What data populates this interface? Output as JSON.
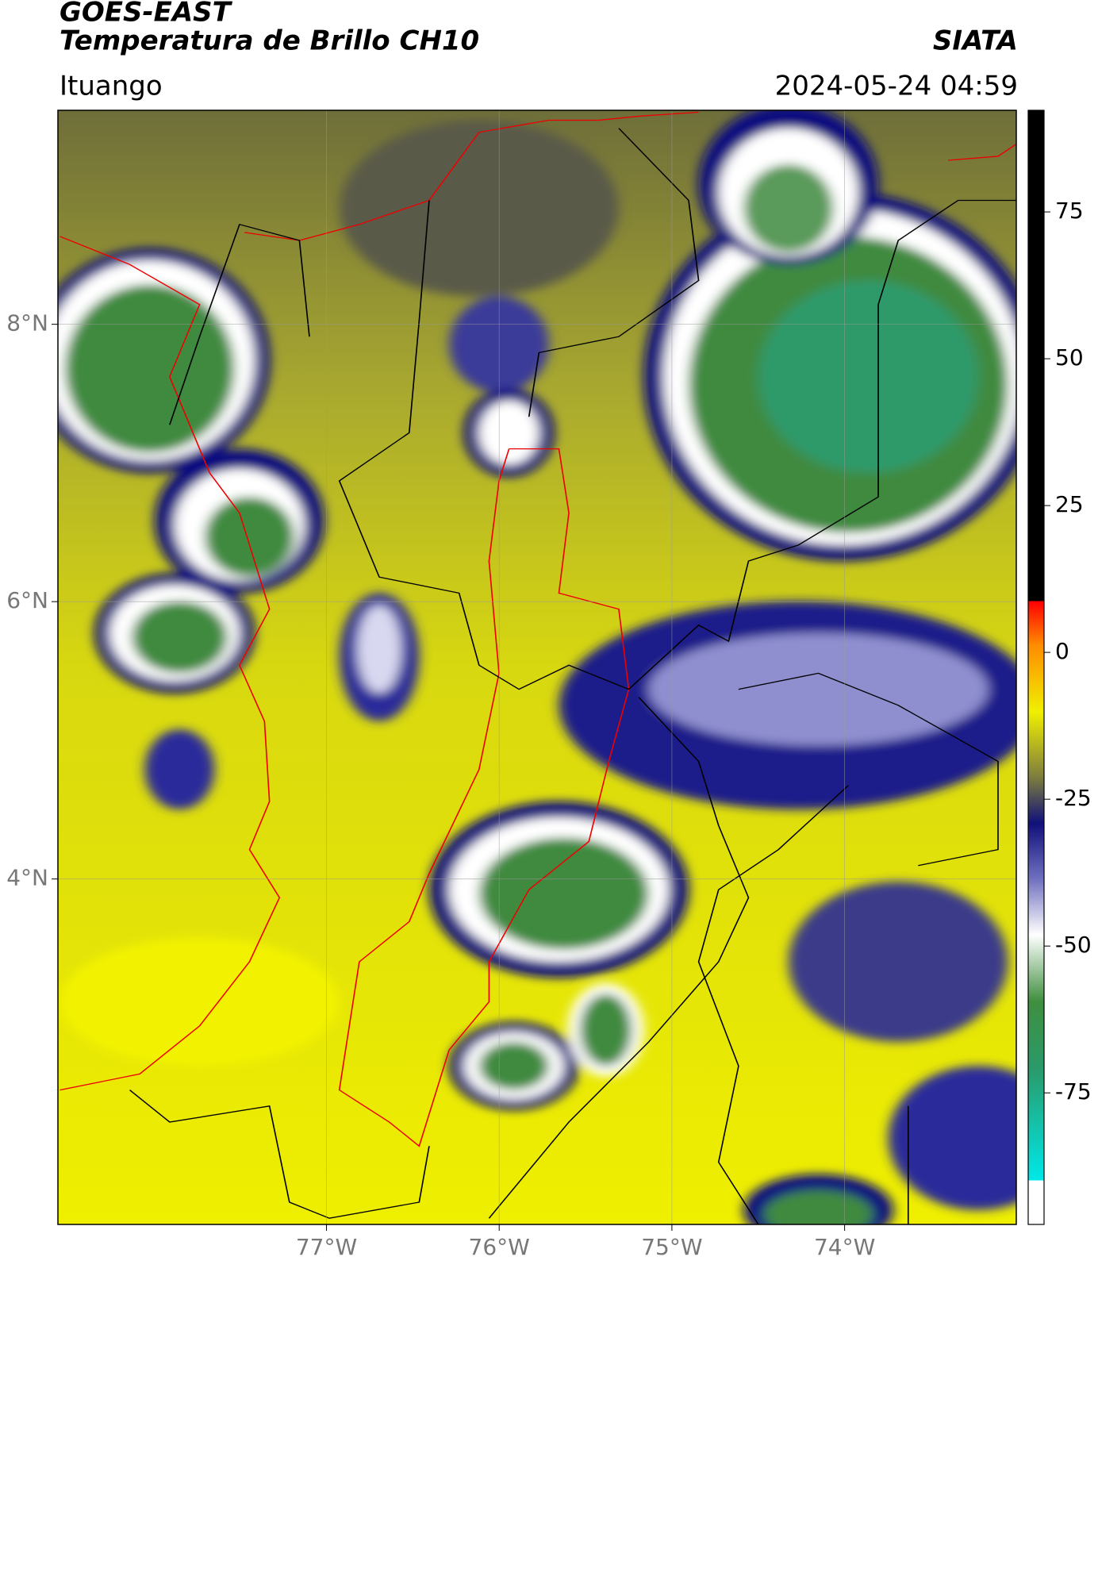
{
  "header": {
    "title": "GOES-EAST",
    "subtitle": "Temperatura de Brillo CH10",
    "source": "SIATA",
    "location": "Ituango",
    "datetime": "2024-05-24 04:59"
  },
  "map": {
    "lonlim": [
      -78.555,
      -73.006
    ],
    "latlim": [
      1.509,
      9.543
    ],
    "lonticks": [
      {
        "value": -77,
        "label": "77°W"
      },
      {
        "value": -76,
        "label": "76°W"
      },
      {
        "value": -75,
        "label": "75°W"
      },
      {
        "value": -74,
        "label": "74°W"
      }
    ],
    "latticks": [
      {
        "value": 8,
        "label": "8°N"
      },
      {
        "value": 6,
        "label": "6°N"
      },
      {
        "value": 4,
        "label": "4°N"
      }
    ],
    "grid": true
  },
  "colorbar": {
    "lim": [
      -97.4,
      92.3
    ],
    "ticks": [
      75,
      50,
      25,
      0,
      -25,
      -50,
      -75
    ]
  }
}
